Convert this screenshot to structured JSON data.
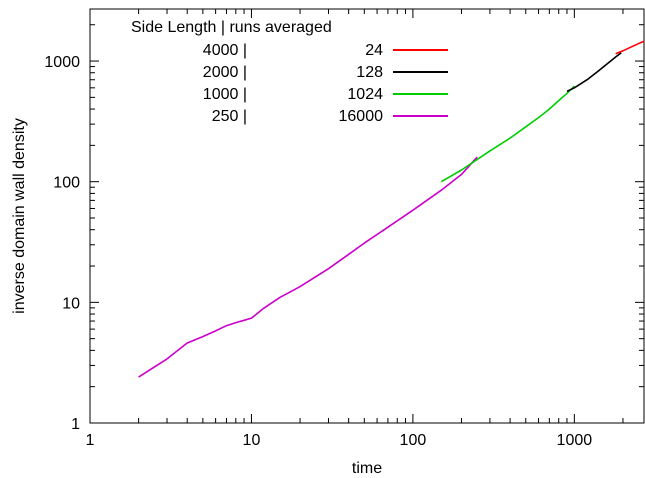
{
  "chart_data": {
    "type": "line",
    "title": "",
    "xlabel": "time",
    "ylabel": "inverse domain wall density",
    "x_scale": "log",
    "y_scale": "log",
    "xlim": [
      1,
      2700
    ],
    "ylim": [
      1,
      2700
    ],
    "x_ticks": [
      1,
      10,
      100,
      1000
    ],
    "x_tick_labels": [
      "1",
      "10",
      "100",
      "1000"
    ],
    "y_ticks": [
      1,
      10,
      100,
      1000
    ],
    "y_tick_labels": [
      "1",
      "10",
      "100",
      "1000"
    ],
    "grid": false,
    "legend": {
      "placement": "top",
      "header": "Side Length | runs averaged"
    },
    "series": [
      {
        "name": "4000 |",
        "runs": "24",
        "color": "#ff0000",
        "points": [
          [
            1800,
            1150
          ],
          [
            2000,
            1215
          ],
          [
            2200,
            1290
          ],
          [
            2450,
            1380
          ],
          [
            2700,
            1460
          ]
        ]
      },
      {
        "name": "2000 |",
        "runs": "128",
        "color": "#000000",
        "points": [
          [
            900,
            560
          ],
          [
            1000,
            600
          ],
          [
            1200,
            700
          ],
          [
            1400,
            820
          ],
          [
            1600,
            950
          ],
          [
            1800,
            1080
          ],
          [
            1950,
            1170
          ]
        ]
      },
      {
        "name": "1000 |",
        "runs": "1024",
        "color": "#00cc00",
        "points": [
          [
            150,
            100
          ],
          [
            200,
            125
          ],
          [
            300,
            180
          ],
          [
            400,
            230
          ],
          [
            500,
            285
          ],
          [
            600,
            340
          ],
          [
            700,
            400
          ],
          [
            800,
            470
          ],
          [
            900,
            540
          ],
          [
            1000,
            620
          ]
        ]
      },
      {
        "name": "250 |",
        "runs": "16000",
        "color": "#cc00cc",
        "points": [
          [
            2,
            2.4
          ],
          [
            3,
            3.4
          ],
          [
            4,
            4.6
          ],
          [
            5,
            5.2
          ],
          [
            6,
            5.8
          ],
          [
            7,
            6.4
          ],
          [
            8,
            6.8
          ],
          [
            9,
            7.1
          ],
          [
            10,
            7.4
          ],
          [
            12,
            9
          ],
          [
            15,
            11
          ],
          [
            20,
            13.5
          ],
          [
            30,
            19
          ],
          [
            40,
            25
          ],
          [
            50,
            31
          ],
          [
            70,
            42
          ],
          [
            100,
            58
          ],
          [
            150,
            85
          ],
          [
            200,
            115
          ],
          [
            250,
            160
          ]
        ]
      }
    ]
  }
}
